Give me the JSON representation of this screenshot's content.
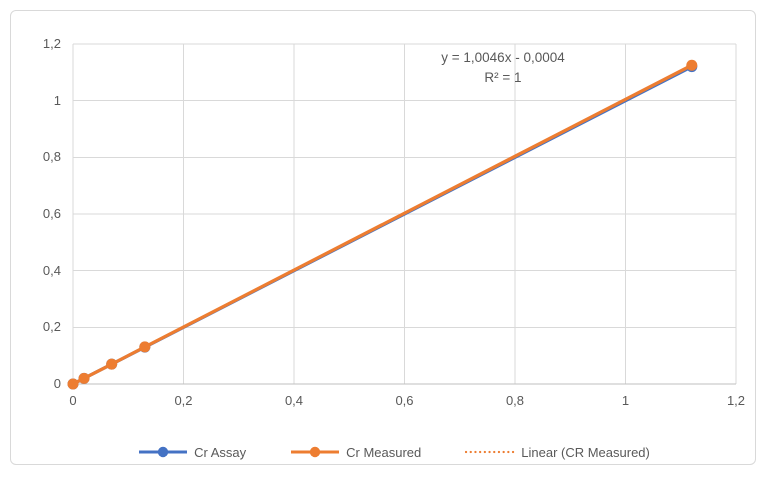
{
  "colors": {
    "background": "#FFFFFF",
    "frame_border": "#D9D9D9",
    "gridline": "#D9D9D9",
    "axis_line": "#BFBFBF",
    "tick_text": "#595959",
    "annotation_text": "#595959",
    "legend_text": "#595959",
    "series_blue": "#4472C4",
    "series_orange": "#ED7D31"
  },
  "chart_data": {
    "type": "line",
    "title": "",
    "xlabel": "",
    "ylabel": "",
    "grid": true,
    "legend_position": "bottom",
    "axes": {
      "xlim": [
        0,
        1.2
      ],
      "ylim": [
        0,
        1.2
      ],
      "x_tick_values": [
        0,
        0.2,
        0.4,
        0.6,
        0.8,
        1.0,
        1.2
      ],
      "x_tick_labels": [
        "0",
        "0,2",
        "0,4",
        "0,6",
        "0,8",
        "1",
        "1,2"
      ],
      "y_tick_values": [
        0,
        0.2,
        0.4,
        0.6,
        0.8,
        1.0,
        1.2
      ],
      "y_tick_labels": [
        "0",
        "0,2",
        "0,4",
        "0,6",
        "0,8",
        "1",
        "1,2"
      ]
    },
    "series": [
      {
        "name": "Cr Assay",
        "color": "#4472C4",
        "marker": "circle",
        "line_style": "solid",
        "x": [
          0,
          0.02,
          0.07,
          0.13,
          1.12
        ],
        "y": [
          0,
          0.02,
          0.07,
          0.13,
          1.12
        ]
      },
      {
        "name": "Cr Measured",
        "color": "#ED7D31",
        "marker": "circle",
        "line_style": "solid",
        "x": [
          0,
          0.02,
          0.07,
          0.13,
          1.12
        ],
        "y": [
          0,
          0.02,
          0.07,
          0.131,
          1.125
        ]
      }
    ],
    "trendline": {
      "label": "Linear (CR Measured)",
      "color": "#ED7D31",
      "style": "dotted",
      "slope": 1.0046,
      "intercept": -0.0004,
      "x_range": [
        0,
        1.12
      ]
    },
    "annotation": {
      "line1": "y = 1,0046x - 0,0004",
      "line2": "R² = 1"
    },
    "legend": {
      "entries": [
        {
          "label": "Cr Assay",
          "color": "#4472C4",
          "swatch": "line-marker"
        },
        {
          "label": "Cr Measured",
          "color": "#ED7D31",
          "swatch": "line-marker"
        },
        {
          "label": "Linear (CR Measured)",
          "color": "#ED7D31",
          "swatch": "dotted"
        }
      ]
    }
  }
}
